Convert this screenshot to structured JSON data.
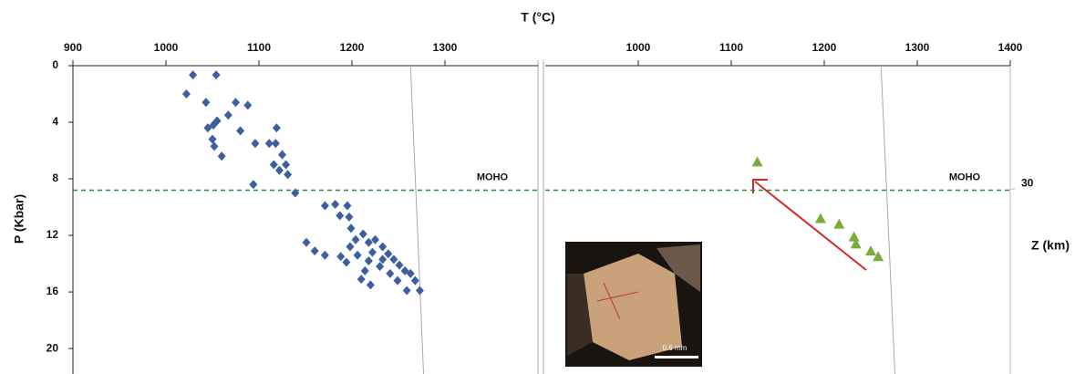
{
  "chart_data": [
    {
      "type": "scatter",
      "x_label": "T (°C)",
      "y_label": "P (Kbar)",
      "xlim": [
        900,
        1400
      ],
      "xticks": [
        900,
        1000,
        1100,
        1200,
        1300
      ],
      "ylim": [
        0,
        21.8
      ],
      "yticks": [
        0,
        4,
        8,
        12,
        16,
        20
      ],
      "moho": {
        "value": 8.8,
        "label": "MOHO"
      },
      "reference_line": {
        "x": [
          1263,
          1277
        ],
        "y": [
          0,
          21.8
        ]
      },
      "series": [
        {
          "color": "#3d5fa0",
          "marker": "diamond",
          "x": [
            1029,
            1054,
            1022,
            1043,
            1075,
            1088,
            1067,
            1055,
            1051,
            1045,
            1080,
            1119,
            1050,
            1052,
            1096,
            1111,
            1118,
            1060,
            1125,
            1116,
            1122,
            1129,
            1131,
            1094,
            1139,
            1171,
            1182,
            1195,
            1187,
            1197,
            1151,
            1160,
            1171,
            1199,
            1204,
            1212,
            1218,
            1225,
            1233,
            1239,
            1245,
            1251,
            1257,
            1263,
            1268,
            1273,
            1259,
            1220,
            1210,
            1194,
            1188,
            1206,
            1218,
            1230,
            1241,
            1249,
            1222,
            1233,
            1198,
            1214
          ],
          "values": [
            0.65,
            0.65,
            2.0,
            2.6,
            2.6,
            2.8,
            3.5,
            3.9,
            4.2,
            4.4,
            4.6,
            4.4,
            5.2,
            5.7,
            5.5,
            5.5,
            5.5,
            6.4,
            6.3,
            7.0,
            7.4,
            7.0,
            7.7,
            8.4,
            9.0,
            9.9,
            9.8,
            9.9,
            10.6,
            10.7,
            12.5,
            13.1,
            13.4,
            11.5,
            12.3,
            11.9,
            12.5,
            12.3,
            12.8,
            13.3,
            13.7,
            14.1,
            14.5,
            14.7,
            15.2,
            15.9,
            15.9,
            15.5,
            15.1,
            13.9,
            13.5,
            13.4,
            13.8,
            14.2,
            14.7,
            15.2,
            13.2,
            13.7,
            12.8,
            14.5
          ]
        }
      ]
    },
    {
      "type": "scatter",
      "y2_label": "Z (km)",
      "xlim": [
        900,
        1400
      ],
      "xticks": [
        1000,
        1100,
        1200,
        1300,
        1400
      ],
      "ylim": [
        0,
        21.8
      ],
      "y2lim": [
        0,
        75
      ],
      "y2ticks": [
        30
      ],
      "moho": {
        "value": 8.8,
        "label": "MOHO"
      },
      "reference_line": {
        "x": [
          1261,
          1276
        ],
        "y": [
          0,
          21.8
        ]
      },
      "series": [
        {
          "color": "#7aab3c",
          "marker": "triangle",
          "x": [
            1128,
            1196,
            1216,
            1232,
            1234,
            1250,
            1258
          ],
          "values": [
            6.8,
            10.8,
            11.2,
            12.1,
            12.6,
            13.1,
            13.5
          ]
        }
      ]
    }
  ],
  "inset": {
    "scale_label": "0.6 mm"
  }
}
